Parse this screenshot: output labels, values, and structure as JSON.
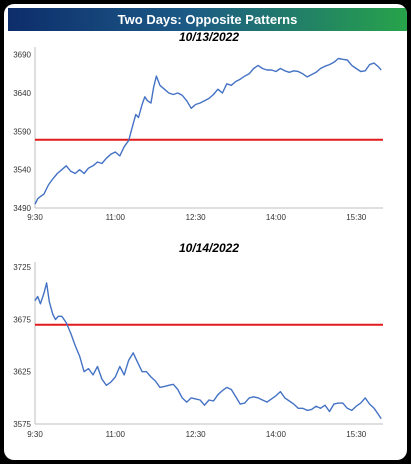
{
  "title": "Two Days: Opposite Patterns",
  "colors": {
    "line": "#4472c4",
    "reference": "#e31a1c",
    "axis": "#bfbfbf"
  },
  "chart_data": [
    {
      "type": "line",
      "title": "10/13/2022",
      "xlabel": "",
      "ylabel": "",
      "x_ticks": [
        "9:30",
        "11:00",
        "12:30",
        "14:00",
        "15:30"
      ],
      "y_ticks": [
        3490,
        3540,
        3590,
        3640,
        3690
      ],
      "xlim": [
        570,
        960
      ],
      "ylim": [
        3490,
        3700
      ],
      "grid": false,
      "reference_line": 3579,
      "series": [
        {
          "x": [
            570,
            573,
            576,
            580,
            585,
            590,
            595,
            600,
            605,
            610,
            615,
            620,
            625,
            630,
            635,
            640,
            645,
            650,
            655,
            660,
            665,
            670,
            675,
            680,
            683,
            686,
            690,
            693,
            696,
            700,
            703,
            706,
            710,
            715,
            720,
            725,
            730,
            735,
            740,
            745,
            750,
            755,
            760,
            765,
            770,
            775,
            780,
            785,
            790,
            795,
            800,
            805,
            810,
            815,
            820,
            825,
            830,
            835,
            840,
            845,
            850,
            855,
            860,
            865,
            870,
            875,
            880,
            885,
            890,
            895,
            900,
            905,
            910,
            915,
            920,
            925,
            930,
            935,
            940,
            945,
            950,
            955,
            958
          ],
          "y": [
            3495,
            3502,
            3505,
            3508,
            3520,
            3528,
            3535,
            3540,
            3545,
            3538,
            3535,
            3540,
            3535,
            3542,
            3545,
            3550,
            3548,
            3555,
            3560,
            3563,
            3558,
            3570,
            3578,
            3600,
            3612,
            3608,
            3625,
            3635,
            3630,
            3627,
            3648,
            3662,
            3650,
            3645,
            3640,
            3638,
            3640,
            3637,
            3630,
            3620,
            3625,
            3627,
            3630,
            3633,
            3638,
            3645,
            3640,
            3652,
            3650,
            3655,
            3658,
            3662,
            3665,
            3672,
            3676,
            3672,
            3670,
            3670,
            3668,
            3672,
            3669,
            3667,
            3669,
            3668,
            3665,
            3661,
            3664,
            3667,
            3672,
            3675,
            3677,
            3680,
            3685,
            3684,
            3683,
            3676,
            3672,
            3668,
            3669,
            3677,
            3679,
            3674,
            3670
          ]
        }
      ]
    },
    {
      "type": "line",
      "title": "10/14/2022",
      "xlabel": "",
      "ylabel": "",
      "x_ticks": [
        "9:30",
        "11:00",
        "12:30",
        "14:00",
        "15:30"
      ],
      "y_ticks": [
        3575,
        3625,
        3675,
        3725
      ],
      "xlim": [
        570,
        960
      ],
      "ylim": [
        3575,
        3730
      ],
      "grid": false,
      "reference_line": 3670,
      "series": [
        {
          "x": [
            570,
            573,
            576,
            580,
            583,
            586,
            590,
            593,
            596,
            600,
            605,
            610,
            615,
            620,
            625,
            630,
            635,
            640,
            645,
            650,
            655,
            660,
            665,
            670,
            675,
            680,
            685,
            690,
            695,
            700,
            705,
            710,
            715,
            720,
            725,
            730,
            735,
            740,
            745,
            750,
            755,
            760,
            765,
            770,
            775,
            780,
            785,
            790,
            795,
            800,
            805,
            810,
            815,
            820,
            825,
            830,
            835,
            840,
            845,
            850,
            855,
            860,
            865,
            870,
            875,
            880,
            885,
            890,
            895,
            900,
            905,
            910,
            915,
            920,
            925,
            930,
            935,
            940,
            945,
            950,
            955,
            958
          ],
          "y": [
            3693,
            3697,
            3690,
            3700,
            3710,
            3692,
            3680,
            3675,
            3678,
            3678,
            3672,
            3662,
            3650,
            3640,
            3625,
            3628,
            3622,
            3630,
            3618,
            3612,
            3615,
            3620,
            3630,
            3622,
            3636,
            3643,
            3634,
            3625,
            3625,
            3620,
            3616,
            3610,
            3611,
            3612,
            3613,
            3608,
            3600,
            3596,
            3600,
            3599,
            3598,
            3593,
            3598,
            3597,
            3603,
            3607,
            3610,
            3608,
            3601,
            3594,
            3595,
            3600,
            3601,
            3600,
            3598,
            3596,
            3599,
            3602,
            3606,
            3600,
            3597,
            3594,
            3590,
            3590,
            3588,
            3589,
            3592,
            3590,
            3593,
            3587,
            3594,
            3595,
            3595,
            3590,
            3588,
            3592,
            3595,
            3600,
            3594,
            3590,
            3584,
            3580
          ]
        }
      ]
    }
  ]
}
